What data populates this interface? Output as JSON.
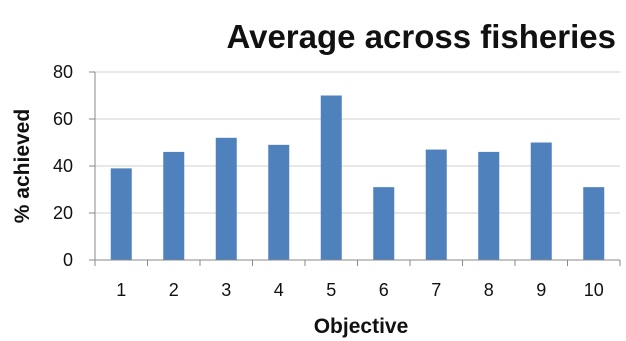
{
  "chart_data": {
    "type": "bar",
    "title": "Average across fisheries",
    "xlabel": "Objective",
    "ylabel": "% achieved",
    "categories": [
      "1",
      "2",
      "3",
      "4",
      "5",
      "6",
      "7",
      "8",
      "9",
      "10"
    ],
    "values": [
      39,
      46,
      52,
      49,
      70,
      31,
      47,
      46,
      50,
      31
    ],
    "ylim": [
      0,
      80
    ],
    "yticks": [
      "0",
      "20",
      "40",
      "60",
      "80"
    ],
    "grid": true,
    "legend": "none",
    "colors": {
      "bar": "#4f81bd",
      "grid": "#d0d0d0",
      "axis": "#888888"
    }
  }
}
